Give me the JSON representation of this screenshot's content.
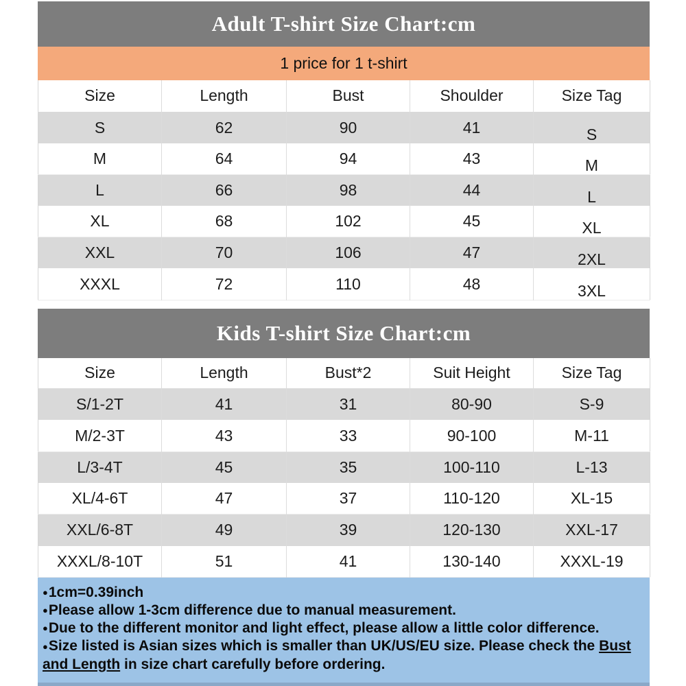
{
  "colors": {
    "title_bar_gray": "#7d7d7d",
    "price_bar_orange": "#f4a97b",
    "row_stripe_gray": "#d9d9d9",
    "notes_blue": "#9dc3e6",
    "notes_bottom_edge": "#8aa8c8",
    "title_text": "#ffffff",
    "body_text": "#1c1c1c"
  },
  "adult_chart": {
    "title": "Adult T-shirt Size Chart:cm",
    "banner": "1 price for 1 t-shirt",
    "columns": [
      "Size",
      "Length",
      "Bust",
      "Shoulder",
      "Size Tag"
    ],
    "rows": [
      [
        "S",
        "62",
        "90",
        "41",
        "S"
      ],
      [
        "M",
        "64",
        "94",
        "43",
        "M"
      ],
      [
        "L",
        "66",
        "98",
        "44",
        "L"
      ],
      [
        "XL",
        "68",
        "102",
        "45",
        "XL"
      ],
      [
        "XXL",
        "70",
        "106",
        "47",
        "2XL"
      ],
      [
        "XXXL",
        "72",
        "110",
        "48",
        "3XL"
      ]
    ]
  },
  "kids_chart": {
    "title": "Kids T-shirt Size Chart:cm",
    "columns": [
      "Size",
      "Length",
      "Bust*2",
      "Suit Height",
      "Size Tag"
    ],
    "rows": [
      [
        "S/1-2T",
        "41",
        "31",
        "80-90",
        "S-9"
      ],
      [
        "M/2-3T",
        "43",
        "33",
        "90-100",
        "M-11"
      ],
      [
        "L/3-4T",
        "45",
        "35",
        "100-110",
        "L-13"
      ],
      [
        "XL/4-6T",
        "47",
        "37",
        "110-120",
        "XL-15"
      ],
      [
        "XXL/6-8T",
        "49",
        "39",
        "120-130",
        "XXL-17"
      ],
      [
        "XXXL/8-10T",
        "51",
        "41",
        "130-140",
        "XXXL-19"
      ]
    ]
  },
  "notes": {
    "bullet": "●",
    "items": [
      {
        "text": "1cm=0.39inch"
      },
      {
        "text": "Please allow 1-3cm difference due to manual measurement."
      },
      {
        "text": "Due to the different monitor and light effect, please allow a little color difference."
      },
      {
        "pre": "Size listed is Asian sizes which is smaller than UK/US/EU size. Please check the ",
        "underline": "Bust and Length",
        "post": " in size chart carefully before ordering."
      }
    ]
  }
}
